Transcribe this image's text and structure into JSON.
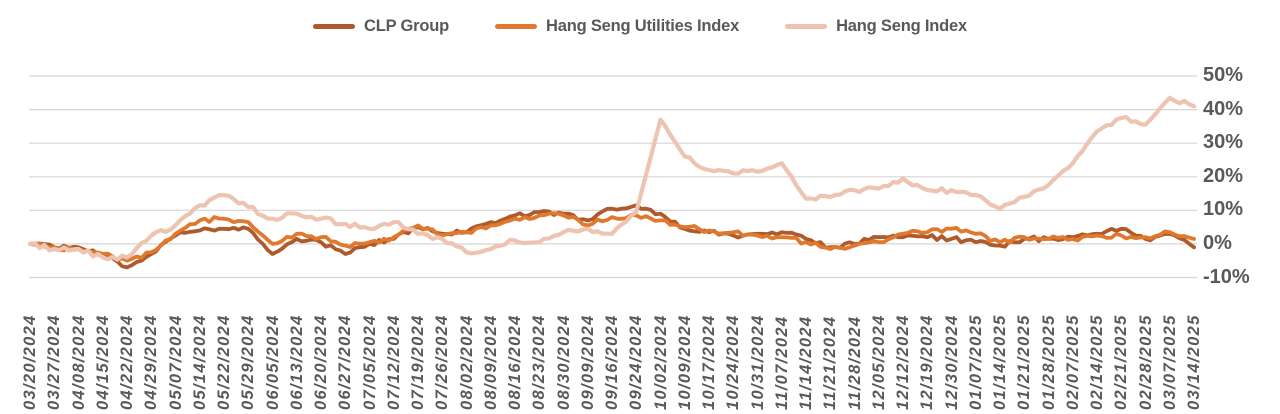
{
  "chart_data": {
    "type": "line",
    "legend_position": "top",
    "y_axis_side": "right",
    "grid": true,
    "ylim": [
      -10,
      50
    ],
    "ytick_step": 10,
    "ytick_labels": [
      "50%",
      "40%",
      "30%",
      "20%",
      "10%",
      "0%",
      "-10%"
    ],
    "colors": {
      "axis_text": "#595959",
      "gridline": "#D6D6D6",
      "background": "#FFFFFF"
    },
    "categories": [
      "03/20/2024",
      "03/27/2024",
      "04/08/2024",
      "04/15/2024",
      "04/22/2024",
      "04/29/2024",
      "05/07/2024",
      "05/14/2024",
      "05/22/2024",
      "05/29/2024",
      "06/05/2024",
      "06/13/2024",
      "06/20/2024",
      "06/27/2024",
      "07/05/2024",
      "07/12/2024",
      "07/19/2024",
      "07/26/2024",
      "08/02/2024",
      "08/09/2024",
      "08/16/2024",
      "08/23/2024",
      "08/30/2024",
      "09/09/2024",
      "09/16/2024",
      "09/24/2024",
      "10/02/2024",
      "10/09/2024",
      "10/17/2024",
      "10/24/2024",
      "10/31/2024",
      "11/07/2024",
      "11/14/2024",
      "11/21/2024",
      "11/28/2024",
      "12/05/2024",
      "12/12/2024",
      "12/19/2024",
      "12/30/2024",
      "01/07/2025",
      "01/14/2025",
      "01/21/2025",
      "01/28/2025",
      "02/07/2025",
      "02/14/2025",
      "02/21/2025",
      "02/28/2025",
      "03/07/2025",
      "03/14/2025"
    ],
    "series": [
      {
        "name": "CLP Group",
        "color": "#AE5A2A",
        "unit": "%",
        "values": [
          0,
          -1,
          -1,
          -3,
          -7,
          -3,
          2.5,
          4,
          4.5,
          4.5,
          -3,
          1.5,
          0.5,
          -3,
          0,
          1.5,
          5,
          3,
          3.5,
          6.5,
          8.5,
          9.5,
          9,
          7,
          10.5,
          11.5,
          9,
          4.5,
          3.5,
          2.5,
          3,
          3.5,
          1.5,
          -1,
          0,
          2,
          2,
          2,
          1.5,
          0.5,
          -0.5,
          1.5,
          1.5,
          2,
          3,
          4.5,
          1.5,
          3,
          -1
        ]
      },
      {
        "name": "Hang Seng Utilities Index",
        "color": "#E0782E",
        "unit": "%",
        "values": [
          0,
          -1,
          -1.5,
          -3,
          -5,
          -2.5,
          3,
          7,
          7.5,
          6.5,
          0,
          3,
          2,
          -0.5,
          0.5,
          2,
          5.5,
          2.5,
          3.5,
          5.5,
          7.5,
          8.5,
          8.5,
          5.5,
          8,
          8.5,
          7,
          5,
          4,
          3.5,
          2.5,
          2,
          0.5,
          -1.5,
          -0.5,
          0.5,
          3,
          3.5,
          4.5,
          3,
          0.5,
          2,
          1.5,
          1.5,
          2.5,
          2.5,
          2,
          3.5,
          1.5
        ]
      },
      {
        "name": "Hang Seng Index",
        "color": "#EDC4B1",
        "unit": "%",
        "values": [
          0,
          -1.5,
          -1.5,
          -4,
          -4,
          2.5,
          5.5,
          11.5,
          14.5,
          11,
          7.5,
          9,
          7.5,
          6,
          4.5,
          6.5,
          3,
          1.5,
          -2.5,
          -1.5,
          1,
          0.5,
          3.5,
          4.5,
          3,
          9.5,
          37,
          26,
          22,
          21,
          21.5,
          24,
          13.5,
          14,
          16,
          16.5,
          19.5,
          16,
          16,
          14.5,
          10.5,
          14,
          17.5,
          24,
          33.5,
          37.5,
          35.5,
          43.5,
          41
        ]
      }
    ]
  }
}
